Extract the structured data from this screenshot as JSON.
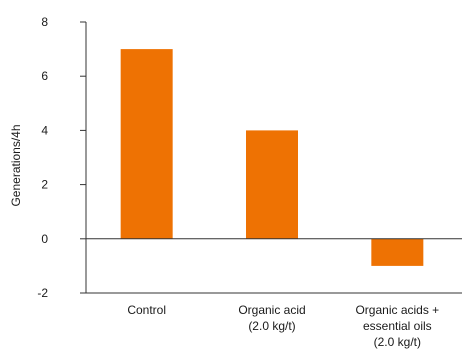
{
  "chart_data": {
    "type": "bar",
    "categories": [
      [
        "Control"
      ],
      [
        "Organic acid",
        "(2.0 kg/t)"
      ],
      [
        "Organic acids +",
        "essential oils",
        "(2.0 kg/t)"
      ]
    ],
    "values": [
      7,
      4,
      -1
    ],
    "ylabel": "Generations/4h",
    "ylim": [
      -2,
      8
    ],
    "yticks": [
      -2,
      0,
      2,
      4,
      6,
      8
    ],
    "grid": false,
    "bar_color": "#ee7203",
    "axis_color": "#333333"
  }
}
